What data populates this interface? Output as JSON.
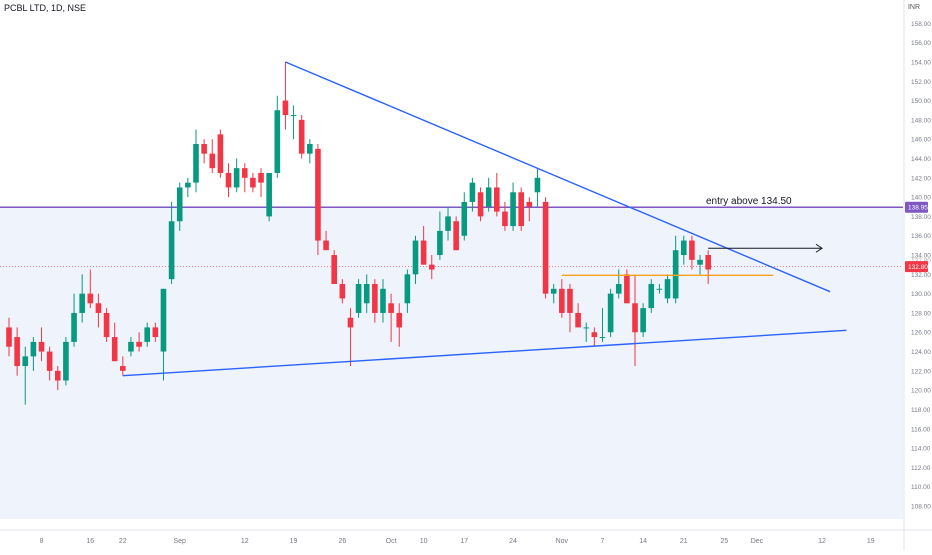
{
  "header": {
    "symbol": "PCBL LTD, 1D, NSE",
    "currency": "INR"
  },
  "colors": {
    "up": "#089981",
    "down": "#f23645",
    "trendline": "#2962ff",
    "resistance": "#7e57c2",
    "support": "#f7a21b",
    "price_line": "#f23645",
    "zone": "#eef3fc",
    "axis_text": "#787b86"
  },
  "chart_data": {
    "type": "candlestick",
    "title": "PCBL LTD, 1D, NSE",
    "ylim": [
      108,
      158
    ],
    "y_ticks": [
      "108.00",
      "110.00",
      "112.00",
      "114.00",
      "116.00",
      "118.00",
      "120.00",
      "122.00",
      "124.00",
      "126.00",
      "128.00",
      "130.00",
      "132.00",
      "134.00",
      "136.00",
      "138.00",
      "140.00",
      "142.00",
      "144.00",
      "146.00",
      "148.00",
      "150.00",
      "152.00",
      "154.00",
      "156.00",
      "158.00"
    ],
    "x_ticks": [
      {
        "label": "8",
        "bar": 4
      },
      {
        "label": "16",
        "bar": 10
      },
      {
        "label": "22",
        "bar": 14
      },
      {
        "label": "Sep",
        "bar": 21
      },
      {
        "label": "12",
        "bar": 29
      },
      {
        "label": "19",
        "bar": 35
      },
      {
        "label": "26",
        "bar": 41
      },
      {
        "label": "Oct",
        "bar": 47
      },
      {
        "label": "10",
        "bar": 51
      },
      {
        "label": "17",
        "bar": 56
      },
      {
        "label": "24",
        "bar": 62
      },
      {
        "label": "Nov",
        "bar": 68
      },
      {
        "label": "7",
        "bar": 73
      },
      {
        "label": "14",
        "bar": 78
      },
      {
        "label": "21",
        "bar": 83
      },
      {
        "label": "25",
        "bar": 88
      },
      {
        "label": "Dec",
        "bar": 92
      },
      {
        "label": "12",
        "bar": 100
      },
      {
        "label": "19",
        "bar": 106
      }
    ],
    "candles": [
      {
        "o": 126.5,
        "h": 127.5,
        "l": 123.5,
        "c": 124.5
      },
      {
        "o": 125.5,
        "h": 126.5,
        "l": 121.5,
        "c": 122.5
      },
      {
        "o": 122.5,
        "h": 124.5,
        "l": 118.5,
        "c": 123.5
      },
      {
        "o": 123.5,
        "h": 125.5,
        "l": 122.0,
        "c": 125.0
      },
      {
        "o": 125.0,
        "h": 126.5,
        "l": 123.0,
        "c": 124.0
      },
      {
        "o": 124.0,
        "h": 124.5,
        "l": 121.0,
        "c": 122.0
      },
      {
        "o": 122.0,
        "h": 122.5,
        "l": 120.0,
        "c": 121.0
      },
      {
        "o": 121.0,
        "h": 125.5,
        "l": 120.5,
        "c": 125.0
      },
      {
        "o": 125.0,
        "h": 130.0,
        "l": 124.5,
        "c": 128.0
      },
      {
        "o": 128.0,
        "h": 132.0,
        "l": 127.0,
        "c": 130.0
      },
      {
        "o": 130.0,
        "h": 132.5,
        "l": 128.5,
        "c": 129.0
      },
      {
        "o": 129.0,
        "h": 130.0,
        "l": 126.5,
        "c": 128.0
      },
      {
        "o": 128.0,
        "h": 128.5,
        "l": 125.0,
        "c": 125.5
      },
      {
        "o": 125.5,
        "h": 127.0,
        "l": 123.0,
        "c": 123.0
      },
      {
        "o": 122.5,
        "h": 123.5,
        "l": 121.5,
        "c": 122.0
      },
      {
        "o": 124.0,
        "h": 125.5,
        "l": 123.5,
        "c": 125.0
      },
      {
        "o": 125.0,
        "h": 126.0,
        "l": 124.0,
        "c": 124.5
      },
      {
        "o": 125.0,
        "h": 127.0,
        "l": 124.5,
        "c": 126.5
      },
      {
        "o": 126.5,
        "h": 127.0,
        "l": 125.0,
        "c": 125.5
      },
      {
        "o": 124.0,
        "h": 130.5,
        "l": 121.0,
        "c": 130.5
      },
      {
        "o": 131.5,
        "h": 139.5,
        "l": 131.0,
        "c": 137.5
      },
      {
        "o": 137.5,
        "h": 141.5,
        "l": 136.5,
        "c": 141.0
      },
      {
        "o": 141.0,
        "h": 142.0,
        "l": 140.0,
        "c": 141.5
      },
      {
        "o": 141.5,
        "h": 147.0,
        "l": 140.5,
        "c": 145.5
      },
      {
        "o": 145.5,
        "h": 146.0,
        "l": 143.5,
        "c": 144.5
      },
      {
        "o": 144.5,
        "h": 146.0,
        "l": 142.5,
        "c": 143.0
      },
      {
        "o": 146.5,
        "h": 147.0,
        "l": 142.0,
        "c": 142.5
      },
      {
        "o": 142.5,
        "h": 143.5,
        "l": 140.0,
        "c": 141.0
      },
      {
        "o": 141.0,
        "h": 144.0,
        "l": 140.5,
        "c": 143.0
      },
      {
        "o": 143.0,
        "h": 143.5,
        "l": 140.5,
        "c": 142.0
      },
      {
        "o": 142.0,
        "h": 142.5,
        "l": 140.5,
        "c": 141.0
      },
      {
        "o": 142.5,
        "h": 143.0,
        "l": 140.0,
        "c": 141.5
      },
      {
        "o": 138.0,
        "h": 142.5,
        "l": 137.5,
        "c": 142.5
      },
      {
        "o": 142.5,
        "h": 150.5,
        "l": 142.0,
        "c": 149.0
      },
      {
        "o": 150.0,
        "h": 154.0,
        "l": 147.0,
        "c": 148.5
      },
      {
        "o": 148.5,
        "h": 149.5,
        "l": 146.0,
        "c": 148.5
      },
      {
        "o": 148.0,
        "h": 148.5,
        "l": 144.0,
        "c": 144.5
      },
      {
        "o": 144.5,
        "h": 146.0,
        "l": 143.5,
        "c": 145.5
      },
      {
        "o": 145.0,
        "h": 145.5,
        "l": 134.0,
        "c": 135.5
      },
      {
        "o": 135.5,
        "h": 136.5,
        "l": 134.5,
        "c": 134.5
      },
      {
        "o": 134.0,
        "h": 134.5,
        "l": 131.0,
        "c": 131.0
      },
      {
        "o": 131.0,
        "h": 131.5,
        "l": 129.0,
        "c": 129.5
      },
      {
        "o": 127.5,
        "h": 128.5,
        "l": 122.5,
        "c": 126.5
      },
      {
        "o": 128.0,
        "h": 131.5,
        "l": 127.5,
        "c": 131.0
      },
      {
        "o": 129.0,
        "h": 132.0,
        "l": 128.0,
        "c": 131.0
      },
      {
        "o": 131.0,
        "h": 131.5,
        "l": 127.0,
        "c": 128.0
      },
      {
        "o": 128.0,
        "h": 131.5,
        "l": 127.0,
        "c": 130.5
      },
      {
        "o": 129.0,
        "h": 130.0,
        "l": 125.0,
        "c": 128.0
      },
      {
        "o": 128.0,
        "h": 129.0,
        "l": 124.5,
        "c": 126.5
      },
      {
        "o": 129.0,
        "h": 132.5,
        "l": 128.0,
        "c": 132.0
      },
      {
        "o": 132.0,
        "h": 136.0,
        "l": 131.0,
        "c": 135.5
      },
      {
        "o": 135.5,
        "h": 137.0,
        "l": 133.0,
        "c": 133.0
      },
      {
        "o": 133.0,
        "h": 134.0,
        "l": 131.5,
        "c": 132.5
      },
      {
        "o": 134.0,
        "h": 138.5,
        "l": 133.5,
        "c": 136.5
      },
      {
        "o": 136.5,
        "h": 139.0,
        "l": 135.5,
        "c": 138.0
      },
      {
        "o": 137.5,
        "h": 138.0,
        "l": 134.5,
        "c": 134.5
      },
      {
        "o": 136.0,
        "h": 140.5,
        "l": 135.5,
        "c": 139.5
      },
      {
        "o": 139.5,
        "h": 142.0,
        "l": 138.5,
        "c": 141.5
      },
      {
        "o": 140.5,
        "h": 141.0,
        "l": 137.5,
        "c": 138.0
      },
      {
        "o": 139.0,
        "h": 142.0,
        "l": 138.5,
        "c": 141.0
      },
      {
        "o": 141.0,
        "h": 142.5,
        "l": 138.0,
        "c": 138.5
      },
      {
        "o": 138.5,
        "h": 139.5,
        "l": 136.5,
        "c": 137.0
      },
      {
        "o": 137.0,
        "h": 141.5,
        "l": 136.5,
        "c": 140.5
      },
      {
        "o": 140.5,
        "h": 141.0,
        "l": 136.5,
        "c": 137.0
      },
      {
        "o": 139.5,
        "h": 140.0,
        "l": 137.5,
        "c": 139.0
      },
      {
        "o": 140.5,
        "h": 143.0,
        "l": 139.0,
        "c": 142.0
      },
      {
        "o": 139.5,
        "h": 140.0,
        "l": 129.5,
        "c": 130.0
      },
      {
        "o": 130.0,
        "h": 131.0,
        "l": 129.0,
        "c": 130.5
      },
      {
        "o": 130.5,
        "h": 131.5,
        "l": 127.5,
        "c": 128.0
      },
      {
        "o": 130.5,
        "h": 131.0,
        "l": 126.0,
        "c": 128.0
      },
      {
        "o": 128.0,
        "h": 129.0,
        "l": 126.5,
        "c": 126.5
      },
      {
        "o": 126.5,
        "h": 127.0,
        "l": 125.0,
        "c": 126.5
      },
      {
        "o": 126.0,
        "h": 126.5,
        "l": 124.5,
        "c": 125.5
      },
      {
        "o": 125.5,
        "h": 128.5,
        "l": 125.0,
        "c": 125.5
      },
      {
        "o": 126.0,
        "h": 130.5,
        "l": 125.5,
        "c": 130.0
      },
      {
        "o": 130.0,
        "h": 132.5,
        "l": 129.5,
        "c": 131.0
      },
      {
        "o": 132.0,
        "h": 132.5,
        "l": 129.0,
        "c": 129.0
      },
      {
        "o": 129.0,
        "h": 132.0,
        "l": 122.5,
        "c": 126.0
      },
      {
        "o": 126.0,
        "h": 129.0,
        "l": 125.5,
        "c": 128.5
      },
      {
        "o": 128.5,
        "h": 131.5,
        "l": 128.0,
        "c": 131.0
      },
      {
        "o": 130.5,
        "h": 131.0,
        "l": 130.0,
        "c": 130.5
      },
      {
        "o": 129.5,
        "h": 132.0,
        "l": 129.0,
        "c": 131.5
      },
      {
        "o": 129.5,
        "h": 136.0,
        "l": 129.0,
        "c": 134.5
      },
      {
        "o": 134.0,
        "h": 136.0,
        "l": 133.0,
        "c": 135.5
      },
      {
        "o": 135.5,
        "h": 136.0,
        "l": 132.5,
        "c": 133.5
      },
      {
        "o": 133.0,
        "h": 134.0,
        "l": 132.0,
        "c": 133.5
      },
      {
        "o": 134.0,
        "h": 134.5,
        "l": 131.0,
        "c": 132.5
      }
    ],
    "annotations": {
      "text": "entry above 134.50",
      "resistance_level": 138.95,
      "resistance_label": "138.95",
      "last_price_level": 132.8,
      "last_price_label": "132.80",
      "hidden_price_label": "132.80",
      "upper_trendline": {
        "from": {
          "bar": 34,
          "price": 154.0
        },
        "to": {
          "bar": 101,
          "price": 130.2
        }
      },
      "lower_trendline": {
        "from": {
          "bar": 14,
          "price": 121.5
        },
        "to": {
          "bar": 103,
          "price": 126.2
        }
      },
      "support_line": {
        "price": 131.9,
        "from_bar": 68,
        "to_bar": 94
      },
      "arrow": {
        "price": 134.7,
        "from_bar": 86,
        "to_bar": 100
      }
    }
  }
}
